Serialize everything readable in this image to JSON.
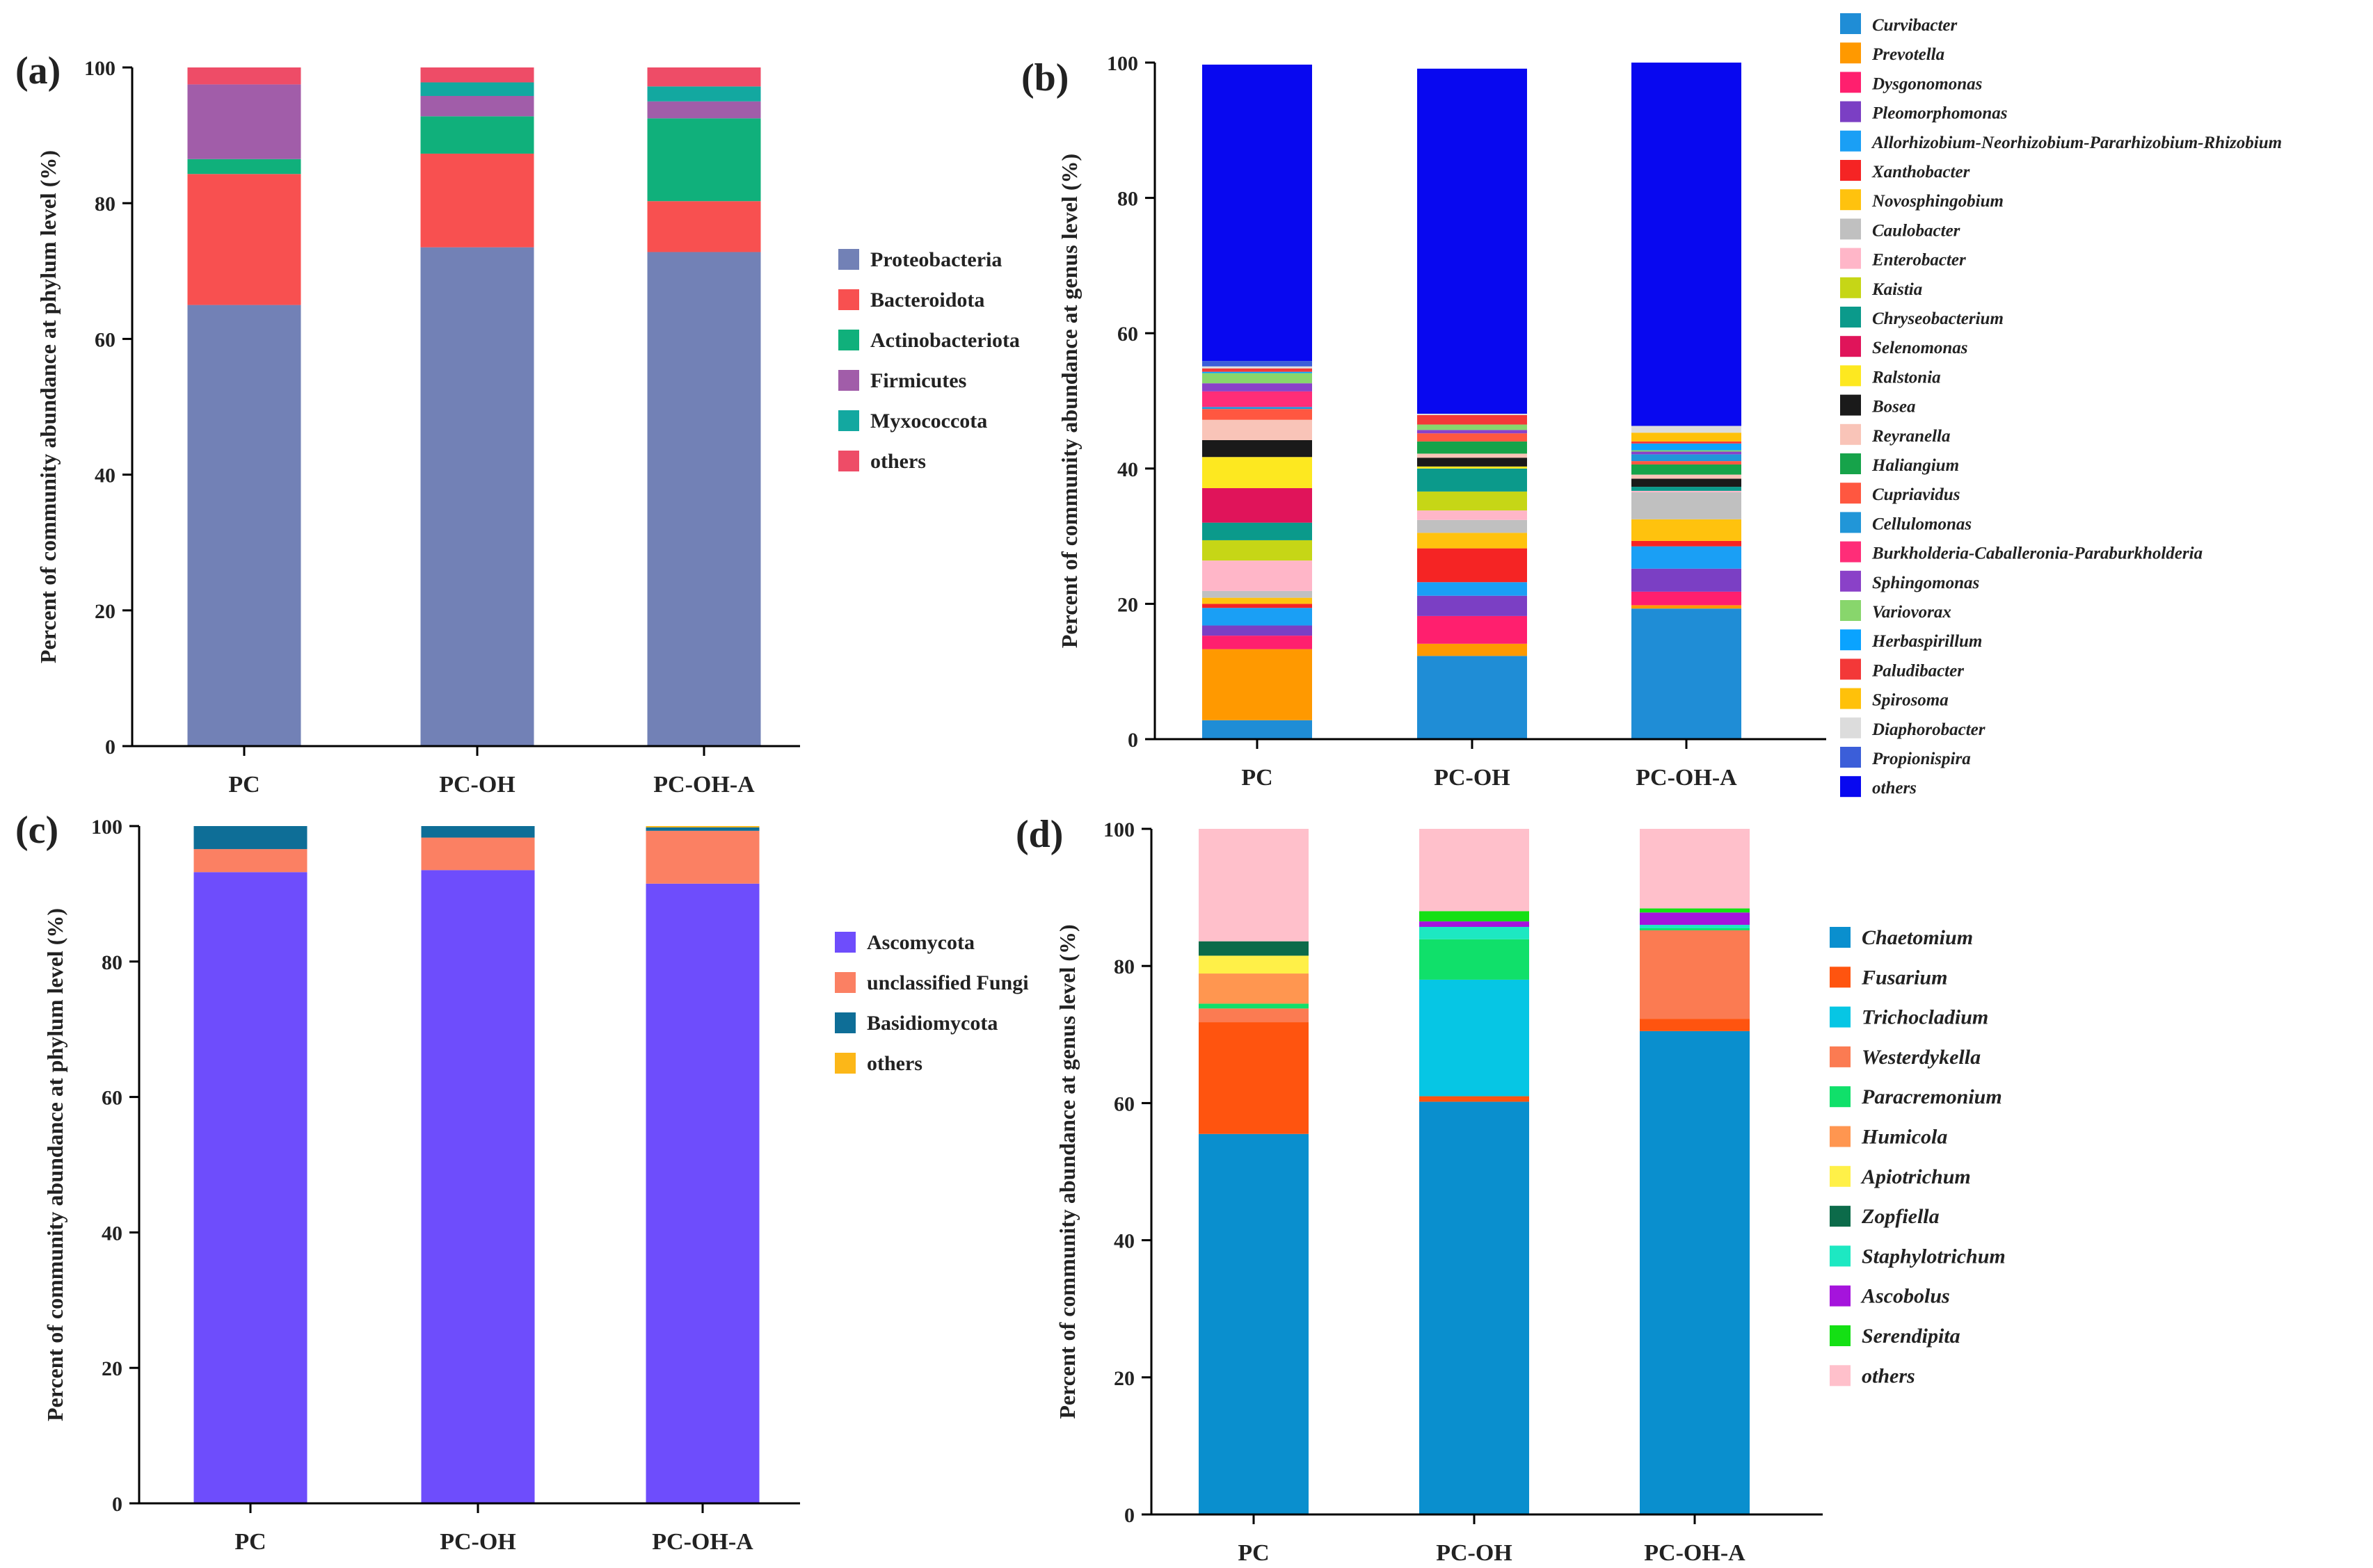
{
  "chart_data": [
    {
      "id": "a",
      "panel_label": "(a)",
      "type": "bar",
      "stacked": true,
      "categories": [
        "PC",
        "PC-OH",
        "PC-OH-A"
      ],
      "ylabel": "Percent of community abundance at phylum level (%)",
      "xlabel": "",
      "ylim": [
        0,
        100
      ],
      "yticks": [
        0,
        20,
        40,
        60,
        80,
        100
      ],
      "legend_position": "right",
      "series": [
        {
          "name": "Proteobacteria",
          "color": "#7281b6",
          "values": [
            65.0,
            73.5,
            72.8
          ]
        },
        {
          "name": "Bacteroidota",
          "color": "#f85050",
          "values": [
            19.3,
            13.8,
            7.5
          ]
        },
        {
          "name": "Actinobacteriota",
          "color": "#10b07b",
          "values": [
            2.2,
            5.5,
            12.2
          ]
        },
        {
          "name": "Firmicutes",
          "color": "#a15da9",
          "values": [
            11.0,
            3.0,
            2.5
          ]
        },
        {
          "name": "Myxococcota",
          "color": "#13a8a0",
          "values": [
            0.0,
            2.0,
            2.2
          ]
        },
        {
          "name": "others",
          "color": "#ee4c67",
          "values": [
            2.5,
            2.2,
            2.8
          ]
        }
      ]
    },
    {
      "id": "b",
      "panel_label": "(b)",
      "type": "bar",
      "stacked": true,
      "categories": [
        "PC",
        "PC-OH",
        "PC-OH-A"
      ],
      "ylabel": "Percent of community abundance at genus level (%)",
      "xlabel": "",
      "ylim": [
        0,
        100
      ],
      "yticks": [
        0,
        20,
        40,
        60,
        80,
        100
      ],
      "legend_position": "right",
      "series": [
        {
          "name": "Curvibacter",
          "color": "#1f8dd6",
          "values": [
            2.8,
            12.3,
            19.3
          ]
        },
        {
          "name": "Prevotella",
          "color": "#ff9900",
          "values": [
            10.5,
            1.8,
            0.5
          ]
        },
        {
          "name": "Dysgonomonas",
          "color": "#ff1f6e",
          "values": [
            2.0,
            4.1,
            2.0
          ]
        },
        {
          "name": "Pleomorphomonas",
          "color": "#7b3fc4",
          "values": [
            1.5,
            3.0,
            3.4
          ]
        },
        {
          "name": "Allorhizobium-Neorhizobium-Pararhizobium-Rhizobium",
          "color": "#1a9ff5",
          "values": [
            2.6,
            2.0,
            3.3
          ]
        },
        {
          "name": "Xanthobacter",
          "color": "#f52424",
          "values": [
            0.6,
            5.0,
            0.8
          ]
        },
        {
          "name": "Novosphingobium",
          "color": "#ffc20e",
          "values": [
            0.9,
            2.3,
            3.2
          ]
        },
        {
          "name": "Caulobacter",
          "color": "#c0c0c0",
          "values": [
            1.0,
            1.9,
            4.0
          ]
        },
        {
          "name": "Enterobacter",
          "color": "#ffb6c8",
          "values": [
            4.5,
            1.4,
            0.2
          ]
        },
        {
          "name": "Kaistia",
          "color": "#c6d616",
          "values": [
            3.0,
            2.8,
            0.0
          ]
        },
        {
          "name": "Chryseobacterium",
          "color": "#0b9a8b",
          "values": [
            2.6,
            3.4,
            0.6
          ]
        },
        {
          "name": "Selenomonas",
          "color": "#e0145a",
          "values": [
            5.1,
            0.0,
            0.0
          ]
        },
        {
          "name": "Ralstonia",
          "color": "#fde820",
          "values": [
            4.6,
            0.3,
            0.0
          ]
        },
        {
          "name": "Bosea",
          "color": "#1a1a1a",
          "values": [
            2.5,
            1.3,
            1.2
          ]
        },
        {
          "name": "Reyranella",
          "color": "#f9c4b8",
          "values": [
            3.0,
            0.6,
            0.6
          ]
        },
        {
          "name": "Haliangium",
          "color": "#16a34a",
          "values": [
            0.0,
            1.8,
            1.5
          ]
        },
        {
          "name": "Cupriavidus",
          "color": "#ff5740",
          "values": [
            1.6,
            1.2,
            0.5
          ]
        },
        {
          "name": "Cellulomonas",
          "color": "#2196d8",
          "values": [
            0.3,
            0.0,
            1.0
          ]
        },
        {
          "name": "Burkholderia-Caballeronia-Paraburkholderia",
          "color": "#ff2d78",
          "values": [
            2.3,
            0.0,
            0.0
          ]
        },
        {
          "name": "Sphingomonas",
          "color": "#8a41c8",
          "values": [
            1.2,
            0.5,
            0.4
          ]
        },
        {
          "name": "Variovorax",
          "color": "#88d66c",
          "values": [
            1.5,
            0.8,
            0.2
          ]
        },
        {
          "name": "Herbaspirillum",
          "color": "#0aa3ff",
          "values": [
            0.2,
            0.0,
            1.0
          ]
        },
        {
          "name": "Paludibacter",
          "color": "#f33838",
          "values": [
            0.5,
            1.4,
            0.3
          ]
        },
        {
          "name": "Spirosoma",
          "color": "#ffc10a",
          "values": [
            0.0,
            0.0,
            1.3
          ]
        },
        {
          "name": "Diaphorobacter",
          "color": "#dcdcdc",
          "values": [
            0.3,
            0.2,
            1.0
          ]
        },
        {
          "name": "Propionispira",
          "color": "#3b5ed9",
          "values": [
            0.8,
            0.0,
            0.0
          ]
        },
        {
          "name": "others",
          "color": "#0808f0",
          "values": [
            43.8,
            51.0,
            53.7
          ]
        }
      ]
    },
    {
      "id": "c",
      "panel_label": "(c)",
      "type": "bar",
      "stacked": true,
      "categories": [
        "PC",
        "PC-OH",
        "PC-OH-A"
      ],
      "ylabel": "Percent of community abundance at phylum level (%)",
      "xlabel": "",
      "ylim": [
        0,
        100
      ],
      "yticks": [
        0,
        20,
        40,
        60,
        80,
        100
      ],
      "legend_position": "right",
      "series": [
        {
          "name": "Ascomycota",
          "color": "#6e4dfc",
          "values": [
            93.2,
            93.5,
            91.5
          ]
        },
        {
          "name": "unclassified Fungi",
          "color": "#fb8063",
          "values": [
            3.4,
            4.8,
            7.8
          ]
        },
        {
          "name": "Basidiomycota",
          "color": "#0e6e97",
          "values": [
            3.4,
            1.7,
            0.5
          ]
        },
        {
          "name": "others",
          "color": "#fcb718",
          "values": [
            0.0,
            0.0,
            0.2
          ]
        }
      ]
    },
    {
      "id": "d",
      "panel_label": "(d)",
      "type": "bar",
      "stacked": true,
      "categories": [
        "PC",
        "PC-OH",
        "PC-OH-A"
      ],
      "ylabel": "Percent of community abundance at genus level (%)",
      "xlabel": "",
      "ylim": [
        0,
        100
      ],
      "yticks": [
        0,
        20,
        40,
        60,
        80,
        100
      ],
      "legend_position": "right",
      "series": [
        {
          "name": "Chaetomium",
          "color": "#0a8fce",
          "values": [
            55.5,
            60.2,
            70.5
          ]
        },
        {
          "name": "Fusarium",
          "color": "#ff540f",
          "values": [
            16.3,
            0.8,
            1.8
          ]
        },
        {
          "name": "Trichocladium",
          "color": "#06c6e4",
          "values": [
            0.0,
            17.0,
            0.0
          ]
        },
        {
          "name": "Westerdykella",
          "color": "#fb7b52",
          "values": [
            2.0,
            0.0,
            12.9
          ]
        },
        {
          "name": "Paracremonium",
          "color": "#10e06a",
          "values": [
            0.7,
            5.9,
            0.3
          ]
        },
        {
          "name": "Humicola",
          "color": "#ff9650",
          "values": [
            4.4,
            0.0,
            0.0
          ]
        },
        {
          "name": "Apiotrichum",
          "color": "#fff048",
          "values": [
            2.6,
            0.0,
            0.0
          ]
        },
        {
          "name": "Zopfiella",
          "color": "#0c6b4a",
          "values": [
            2.1,
            0.0,
            0.0
          ]
        },
        {
          "name": "Staphylotrichum",
          "color": "#1de8c2",
          "values": [
            0.0,
            1.8,
            0.5
          ]
        },
        {
          "name": "Ascobolus",
          "color": "#a514dc",
          "values": [
            0.0,
            0.8,
            1.8
          ]
        },
        {
          "name": "Serendipita",
          "color": "#14e014",
          "values": [
            0.0,
            1.5,
            0.6
          ]
        },
        {
          "name": "others",
          "color": "#ffc0cb",
          "values": [
            16.4,
            12.0,
            11.6
          ]
        }
      ]
    }
  ]
}
